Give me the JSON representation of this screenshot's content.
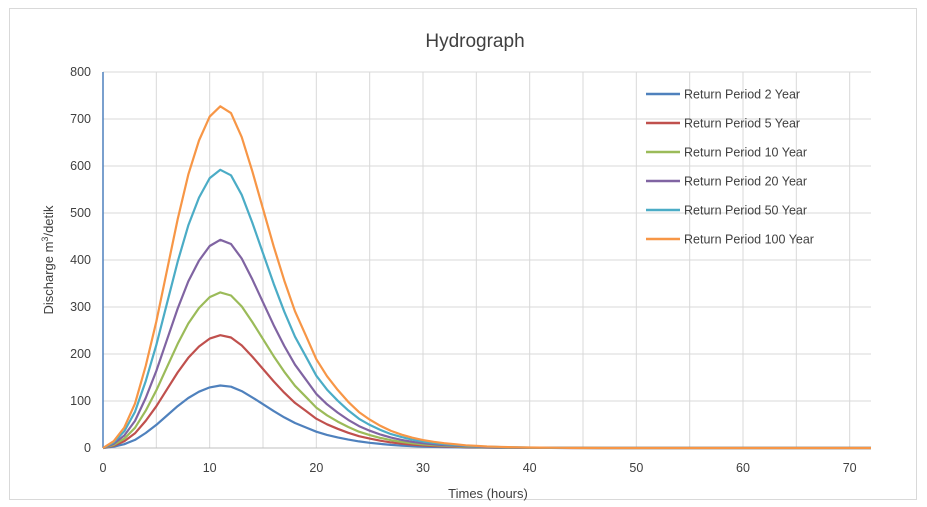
{
  "chart_data": {
    "type": "line",
    "title": "Hydrograph",
    "xlabel": "Times (hours)",
    "ylabel_main": "Discharge m",
    "ylabel_sup": "3",
    "ylabel_tail": "/detik",
    "xlim": [
      0,
      72
    ],
    "ylim": [
      0,
      800
    ],
    "xticks": [
      0,
      10,
      20,
      30,
      40,
      50,
      60,
      70
    ],
    "yticks": [
      0,
      100,
      200,
      300,
      400,
      500,
      600,
      700,
      800
    ],
    "grid": true,
    "legend_position": "top-right",
    "x": [
      0,
      1,
      2,
      3,
      4,
      5,
      6,
      7,
      8,
      9,
      10,
      11,
      12,
      13,
      14,
      15,
      16,
      17,
      18,
      19,
      20,
      21,
      22,
      23,
      24,
      25,
      26,
      27,
      28,
      29,
      30,
      31,
      32,
      33,
      34,
      35,
      36,
      37,
      38,
      39,
      40,
      41,
      42,
      43,
      44,
      45,
      46,
      47,
      48,
      49,
      50,
      51,
      52,
      53,
      54,
      55,
      56,
      57,
      58,
      59,
      60,
      61,
      62,
      63,
      64,
      65,
      66,
      67,
      68,
      69,
      70,
      71,
      72
    ],
    "peaks": [
      133,
      240,
      331,
      443,
      592,
      727
    ],
    "shape": [
      0,
      0.02,
      0.06,
      0.13,
      0.24,
      0.37,
      0.52,
      0.67,
      0.8,
      0.9,
      0.97,
      1.0,
      0.98,
      0.91,
      0.81,
      0.7,
      0.59,
      0.49,
      0.4,
      0.33,
      0.26,
      0.21,
      0.17,
      0.135,
      0.105,
      0.083,
      0.065,
      0.05,
      0.039,
      0.03,
      0.023,
      0.018,
      0.014,
      0.011,
      0.008,
      0.006,
      0.0045,
      0.0035,
      0.0026,
      0.002,
      0.0015,
      0.0011,
      0.0008,
      0.0006,
      0.0004,
      0.0003,
      0.0002,
      0.0001,
      0,
      0,
      0,
      0,
      0,
      0,
      0,
      0,
      0,
      0,
      0,
      0,
      0,
      0,
      0,
      0,
      0,
      0,
      0,
      0,
      0,
      0,
      0,
      0,
      0
    ],
    "series": [
      {
        "name": "Return Period 2 Year",
        "color": "#4f81bd",
        "peak": 133
      },
      {
        "name": "Return Period 5 Year",
        "color": "#c0504d",
        "peak": 240
      },
      {
        "name": "Return Period 10 Year",
        "color": "#9bbb59",
        "peak": 331
      },
      {
        "name": "Return Period 20 Year",
        "color": "#8064a2",
        "peak": 443
      },
      {
        "name": "Return Period 50 Year",
        "color": "#4bacc6",
        "peak": 592
      },
      {
        "name": "Return Period 100 Year",
        "color": "#f79646",
        "peak": 727
      }
    ]
  }
}
